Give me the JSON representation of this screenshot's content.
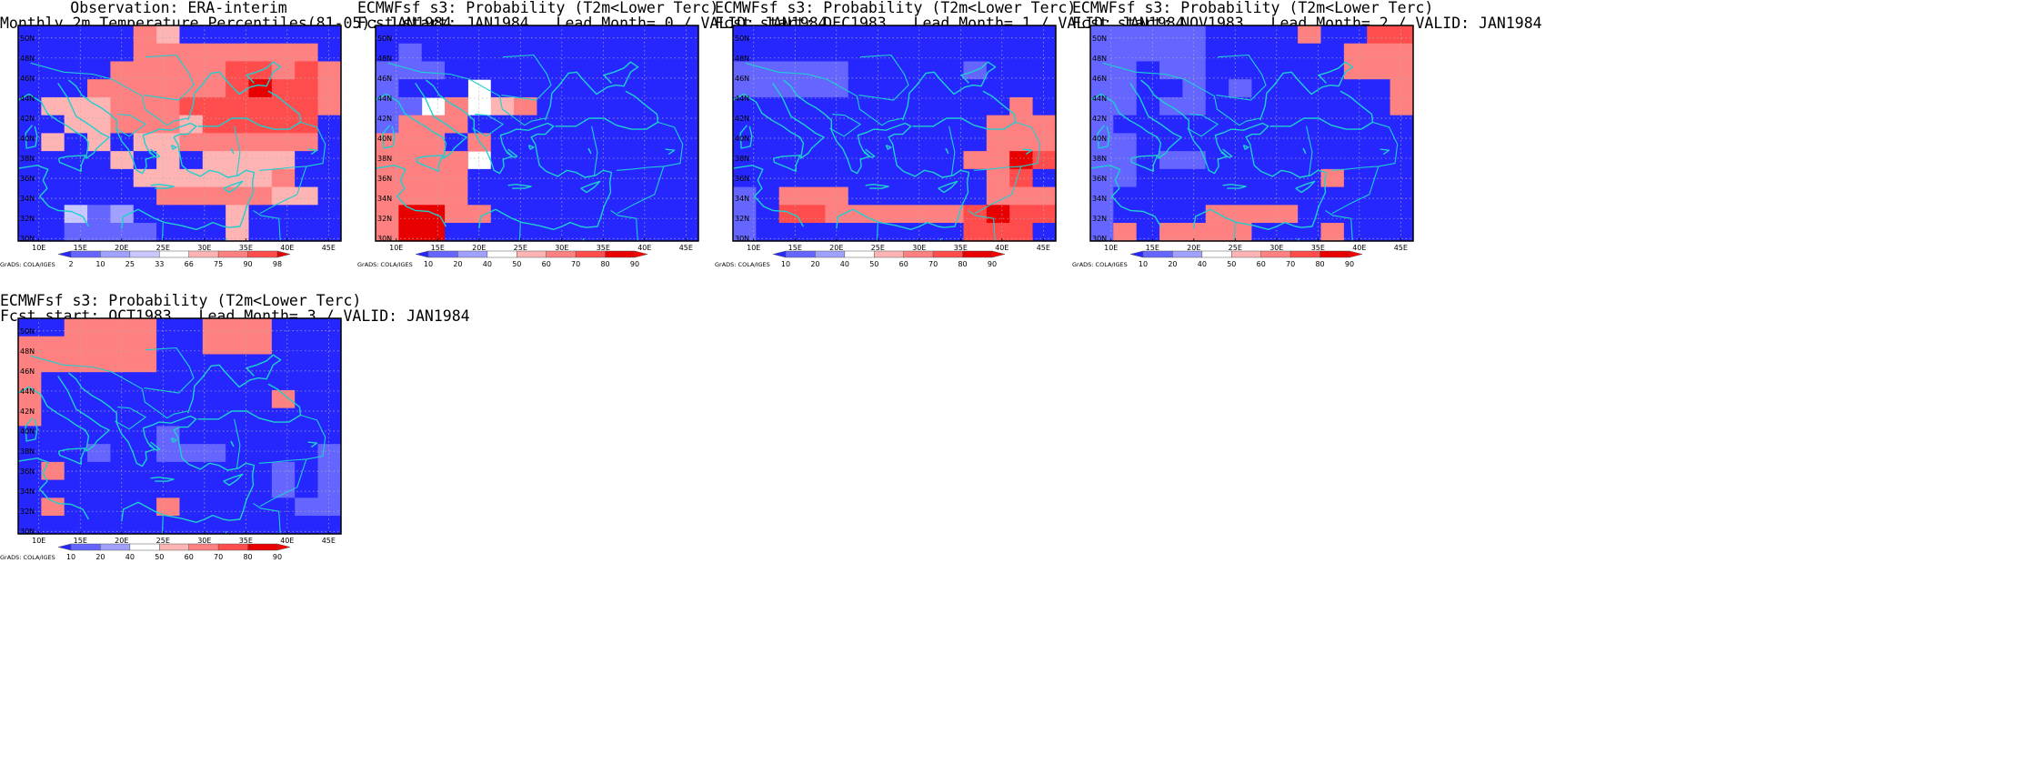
{
  "scale_observed": {
    "colors": [
      "#2626ff",
      "#6565ff",
      "#a0a0ff",
      "#c8c8ff",
      "#ffffff",
      "#ffb4b4",
      "#ff8080",
      "#ff4c4c",
      "#e80000"
    ],
    "labels": [
      "2",
      "10",
      "25",
      "33",
      "66",
      "75",
      "90",
      "98"
    ]
  },
  "scale_probability": {
    "colors": [
      "#2626ff",
      "#6565ff",
      "#a0a0ff",
      "#ffffff",
      "#ffb4b4",
      "#ff8080",
      "#ff4c4c",
      "#e80000",
      "#ff0000"
    ],
    "labels": [
      "10",
      "20",
      "40",
      "50",
      "60",
      "70",
      "80",
      "90"
    ]
  },
  "chart_data": [
    {
      "type": "heatmap",
      "title_line1": "Observation: ERA-interim",
      "title_line2": "Monthly 2m Temperature Percentiles(81-05): JAN1984",
      "x_ticks": [
        "10E",
        "15E",
        "20E",
        "25E",
        "30E",
        "35E",
        "40E",
        "45E"
      ],
      "y_ticks": [
        "30N",
        "32N",
        "34N",
        "36N",
        "38N",
        "40N",
        "42N",
        "44N",
        "46N",
        "48N",
        "50N"
      ],
      "lon_range": [
        7.5,
        46.5
      ],
      "lat_range": [
        29.75,
        51.25
      ],
      "cell_size": [
        2.5,
        2.5
      ],
      "cell_rows_note": "rows north to south, columns west to east, category index per scale",
      "cells": [
        "00000650000000",
        "00000666666660",
        "00006666677676",
        "00066666678776",
        "05556667777776",
        "00556665777770",
        "05050556666660",
        "00005050555500",
        "00000555555600",
        "00000066666550",
        "00312000050000",
        "00111100050000"
      ],
      "scale": "observed",
      "credit": "GrADS: COLA/IGES"
    },
    {
      "type": "heatmap",
      "title_line1": "ECMWFsf s3: Probability (T2m<Lower Terc)",
      "title_line2": "Fcst start: JAN1984   Lead Month= 0 / VALID: JAN1984",
      "x_ticks": [
        "10E",
        "15E",
        "20E",
        "25E",
        "30E",
        "35E",
        "40E",
        "45E"
      ],
      "y_ticks": [
        "30N",
        "32N",
        "34N",
        "36N",
        "38N",
        "40N",
        "42N",
        "44N",
        "46N",
        "48N",
        "50N"
      ],
      "lon_range": [
        7.5,
        46.5
      ],
      "lat_range": [
        29.75,
        51.25
      ],
      "cell_size": [
        2.5,
        2.5
      ],
      "cells": [
        "00000000000000",
        "01000000000000",
        "11100000000000",
        "10003000000000",
        "11353450000000",
        "15550000000000",
        "55505000000000",
        "55553000000000",
        "55550000000000",
        "55550000000000",
        "57755000000000",
        "57700000000000"
      ],
      "scale": "probability",
      "credit": "GrADS: COLA/IGES"
    },
    {
      "type": "heatmap",
      "title_line1": "ECMWFsf s3: Probability (T2m<Lower Terc)",
      "title_line2": "Fcst start: DEC1983   Lead Month= 1 / VALID: JAN1984",
      "x_ticks": [
        "10E",
        "15E",
        "20E",
        "25E",
        "30E",
        "35E",
        "40E",
        "45E"
      ],
      "y_ticks": [
        "30N",
        "32N",
        "34N",
        "36N",
        "38N",
        "40N",
        "42N",
        "44N",
        "46N",
        "48N",
        "50N"
      ],
      "lon_range": [
        7.5,
        46.5
      ],
      "lat_range": [
        29.75,
        51.25
      ],
      "cell_size": [
        2.5,
        2.5
      ],
      "cells": [
        "00000000000000",
        "00000000000000",
        "11111000001000",
        "11111000000000",
        "00000000000050",
        "00000000000555",
        "00000000000555",
        "00000000005576",
        "00000000000560",
        "10555000000555",
        "10665555556766",
        "10000000006660"
      ],
      "scale": "probability",
      "credit": "GrADS: COLA/IGES"
    },
    {
      "type": "heatmap",
      "title_line1": "ECMWFsf s3: Probability (T2m<Lower Terc)",
      "title_line2": "Fcst start: NOV1983   Lead Month= 2 / VALID: JAN1984",
      "x_ticks": [
        "10E",
        "15E",
        "20E",
        "25E",
        "30E",
        "35E",
        "40E",
        "45E"
      ],
      "y_ticks": [
        "30N",
        "32N",
        "34N",
        "36N",
        "38N",
        "40N",
        "42N",
        "44N",
        "46N",
        "48N",
        "50N"
      ],
      "lon_range": [
        7.5,
        46.5
      ],
      "lat_range": [
        29.75,
        51.25
      ],
      "cell_size": [
        2.5,
        2.5
      ],
      "cells": [
        "11111000050066",
        "11111000000555",
        "11011000000555",
        "11001010000005",
        "11011000000005",
        "10000000000000",
        "11000000000000",
        "11011000000000",
        "11000000005000",
        "10000000000000",
        "10000555500000",
        "15055550005000"
      ],
      "scale": "probability",
      "credit": "GrADS: COLA/IGES"
    },
    {
      "type": "heatmap",
      "title_line1": "ECMWFsf s3: Probability (T2m<Lower Terc)",
      "title_line2": "Fcst start: OCT1983   Lead Month= 3 / VALID: JAN1984",
      "x_ticks": [
        "10E",
        "15E",
        "20E",
        "25E",
        "30E",
        "35E",
        "40E",
        "45E"
      ],
      "y_ticks": [
        "30N",
        "32N",
        "34N",
        "36N",
        "38N",
        "40N",
        "42N",
        "44N",
        "46N",
        "48N",
        "50N"
      ],
      "lon_range": [
        7.5,
        46.5
      ],
      "lat_range": [
        29.75,
        51.25
      ],
      "cell_size": [
        2.5,
        2.5
      ],
      "cells": [
        "00555500555000",
        "55555500555000",
        "55555500000000",
        "50000000000000",
        "50000000000500",
        "50000000000000",
        "00000010000000",
        "00010011100001",
        "05000000000101",
        "00000000000101",
        "05000050000011",
        "00000000000000"
      ],
      "scale": "probability",
      "credit": "GrADS: COLA/IGES"
    }
  ]
}
